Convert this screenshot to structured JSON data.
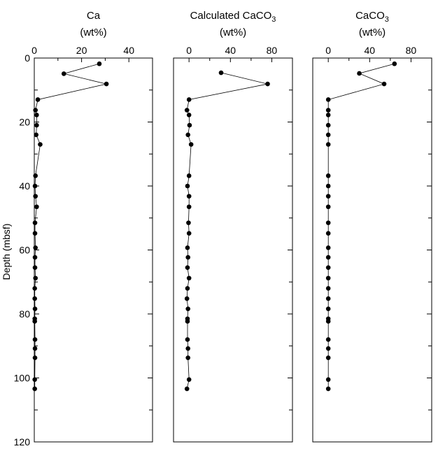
{
  "y_label": "Depth (mbsf)",
  "chart_data": [
    {
      "type": "scatter",
      "title": "Ca",
      "subtitle": "(wt%)",
      "xlim": [
        0,
        50
      ],
      "ylim": [
        0,
        120
      ],
      "x_ticks": [
        0,
        20,
        40
      ],
      "y_ticks": [
        0,
        20,
        40,
        60,
        80,
        100,
        120
      ],
      "points": [
        {
          "x": 27.5,
          "y": 1.8
        },
        {
          "x": 12.5,
          "y": 4.9
        },
        {
          "x": 30.5,
          "y": 8.1
        },
        {
          "x": 1.5,
          "y": 13.0
        },
        {
          "x": 0.5,
          "y": 16.3
        },
        {
          "x": 1.0,
          "y": 17.8
        },
        {
          "x": 1.0,
          "y": 21.0
        },
        {
          "x": 0.8,
          "y": 24.0
        },
        {
          "x": 2.5,
          "y": 27.0
        },
        {
          "x": 0.5,
          "y": 36.8
        },
        {
          "x": 0.3,
          "y": 40.0
        },
        {
          "x": 0.5,
          "y": 43.2
        },
        {
          "x": 1.0,
          "y": 46.5
        },
        {
          "x": 0.3,
          "y": 51.5
        },
        {
          "x": 0.3,
          "y": 54.8
        },
        {
          "x": 0.5,
          "y": 59.3
        },
        {
          "x": 0.3,
          "y": 62.3
        },
        {
          "x": 0.3,
          "y": 65.5
        },
        {
          "x": 0.5,
          "y": 68.8
        },
        {
          "x": 0.2,
          "y": 72.0
        },
        {
          "x": 0.2,
          "y": 75.2
        },
        {
          "x": 0.3,
          "y": 78.4
        },
        {
          "x": 0.2,
          "y": 81.5
        },
        {
          "x": 0.2,
          "y": 82.3
        },
        {
          "x": 0.3,
          "y": 88.0
        },
        {
          "x": 0.3,
          "y": 90.8
        },
        {
          "x": 0.3,
          "y": 93.7
        },
        {
          "x": 0.2,
          "y": 100.5
        },
        {
          "x": 0.2,
          "y": 103.4
        }
      ]
    },
    {
      "type": "scatter",
      "title": "Calculated CaCO",
      "title_subscript": "3",
      "subtitle": "(wt%)",
      "xlim": [
        -15,
        100
      ],
      "ylim": [
        0,
        120
      ],
      "x_ticks": [
        0,
        40,
        80
      ],
      "points": [
        {
          "x": 31,
          "y": 4.6
        },
        {
          "x": 76,
          "y": 8.1
        },
        {
          "x": 0,
          "y": 13.0
        },
        {
          "x": -2,
          "y": 16.3
        },
        {
          "x": 0,
          "y": 17.8
        },
        {
          "x": 0.5,
          "y": 21.0
        },
        {
          "x": -1,
          "y": 24.0
        },
        {
          "x": 2,
          "y": 27.0
        },
        {
          "x": 0,
          "y": 36.8
        },
        {
          "x": -1.5,
          "y": 40.0
        },
        {
          "x": 0,
          "y": 43.2
        },
        {
          "x": 0,
          "y": 46.5
        },
        {
          "x": -0.5,
          "y": 51.5
        },
        {
          "x": 0,
          "y": 54.8
        },
        {
          "x": -1.5,
          "y": 59.3
        },
        {
          "x": -1,
          "y": 62.3
        },
        {
          "x": -1.5,
          "y": 65.5
        },
        {
          "x": 0,
          "y": 68.8
        },
        {
          "x": -1.5,
          "y": 72.0
        },
        {
          "x": -2,
          "y": 75.2
        },
        {
          "x": -1,
          "y": 78.4
        },
        {
          "x": -1.5,
          "y": 81.5
        },
        {
          "x": -1.5,
          "y": 82.3
        },
        {
          "x": -1.5,
          "y": 88.0
        },
        {
          "x": -1,
          "y": 90.8
        },
        {
          "x": -1,
          "y": 93.7
        },
        {
          "x": 0,
          "y": 100.5
        },
        {
          "x": -2,
          "y": 103.4
        }
      ]
    },
    {
      "type": "scatter",
      "title": "CaCO",
      "title_subscript": "3",
      "subtitle": "(wt%)",
      "xlim": [
        -15,
        100
      ],
      "ylim": [
        0,
        120
      ],
      "x_ticks": [
        0,
        40,
        80
      ],
      "points": [
        {
          "x": 64,
          "y": 1.8
        },
        {
          "x": 30,
          "y": 4.8
        },
        {
          "x": 54,
          "y": 8.1
        },
        {
          "x": 0,
          "y": 13.0
        },
        {
          "x": 0,
          "y": 16.3
        },
        {
          "x": 0,
          "y": 17.8
        },
        {
          "x": 0,
          "y": 21.0
        },
        {
          "x": 0,
          "y": 24.0
        },
        {
          "x": 0,
          "y": 27.0
        },
        {
          "x": 0,
          "y": 36.8
        },
        {
          "x": 0,
          "y": 40.0
        },
        {
          "x": 0,
          "y": 43.2
        },
        {
          "x": 0,
          "y": 46.5
        },
        {
          "x": 0,
          "y": 51.5
        },
        {
          "x": 0,
          "y": 54.8
        },
        {
          "x": 0,
          "y": 59.3
        },
        {
          "x": 0,
          "y": 62.3
        },
        {
          "x": 0,
          "y": 65.5
        },
        {
          "x": 0,
          "y": 68.8
        },
        {
          "x": 0,
          "y": 72.0
        },
        {
          "x": 0,
          "y": 75.2
        },
        {
          "x": 0,
          "y": 78.4
        },
        {
          "x": 0,
          "y": 81.5
        },
        {
          "x": 0,
          "y": 82.3
        },
        {
          "x": 0,
          "y": 88.0
        },
        {
          "x": 0,
          "y": 90.8
        },
        {
          "x": 0,
          "y": 93.7
        },
        {
          "x": 0,
          "y": 100.5
        },
        {
          "x": 0,
          "y": 103.4
        }
      ]
    }
  ]
}
